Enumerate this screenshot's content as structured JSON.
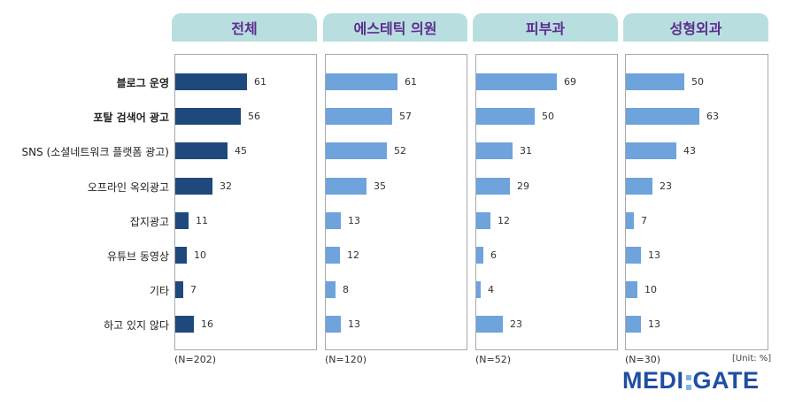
{
  "chart_data": {
    "type": "bar",
    "orientation": "horizontal",
    "unit_note": "[Unit: %]",
    "categories": [
      "블로그 운영",
      "포탈 검색어 광고",
      "SNS (소셜네트워크 플랫폼 광고)",
      "오프라인 옥외광고",
      "잡지광고",
      "유튜브 동영상",
      "기타",
      "하고 있지 않다"
    ],
    "bold_categories": [
      0,
      1
    ],
    "xlim": [
      0,
      100
    ],
    "grid": false,
    "legend": "none",
    "series": [
      {
        "name": "전체",
        "n_label": "(N=202)",
        "color": "#1f497d",
        "values": [
          61,
          56,
          45,
          32,
          11,
          10,
          7,
          16
        ]
      },
      {
        "name": "에스테틱 의원",
        "n_label": "(N=120)",
        "color": "#6fa3dc",
        "values": [
          61,
          57,
          52,
          35,
          13,
          12,
          8,
          13
        ]
      },
      {
        "name": "피부과",
        "n_label": "(N=52)",
        "color": "#6fa3dc",
        "values": [
          69,
          50,
          31,
          29,
          12,
          6,
          4,
          23
        ]
      },
      {
        "name": "성형외과",
        "n_label": "(N=30)",
        "color": "#6fa3dc",
        "values": [
          50,
          63,
          43,
          23,
          7,
          13,
          10,
          13
        ]
      }
    ]
  },
  "logo": {
    "left": "MEDI",
    "right": "GATE"
  }
}
